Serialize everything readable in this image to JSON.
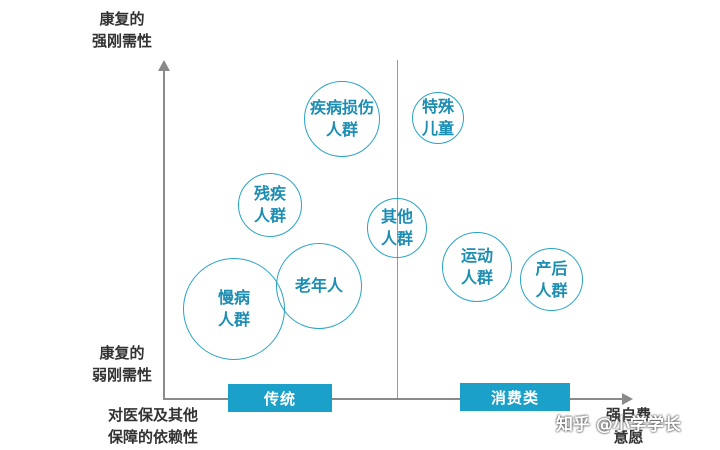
{
  "axes": {
    "y_top_label": "康复的\n强刚需性",
    "y_bottom_label": "康复的\n弱刚需性",
    "x_left_label": "对医保及其他\n保障的依赖性",
    "x_right_label": "强自费\n意愿"
  },
  "tags": {
    "left": "传统",
    "right": "消费类"
  },
  "bubbles": [
    {
      "id": "injury",
      "text": "疾病损伤\n人群"
    },
    {
      "id": "special-children",
      "text": "特殊\n儿童"
    },
    {
      "id": "disabled",
      "text": "残疾\n人群"
    },
    {
      "id": "other",
      "text": "其他\n人群"
    },
    {
      "id": "elderly",
      "text": "老年人"
    },
    {
      "id": "chronic",
      "text": "慢病\n人群"
    },
    {
      "id": "sports",
      "text": "运动\n人群"
    },
    {
      "id": "postpartum",
      "text": "产后\n人群"
    }
  ],
  "watermark": "知乎 @小学学长",
  "colors": {
    "accent": "#1aa0c9",
    "bubble_border": "#2aa3c4",
    "bubble_text": "#1c8db3"
  }
}
